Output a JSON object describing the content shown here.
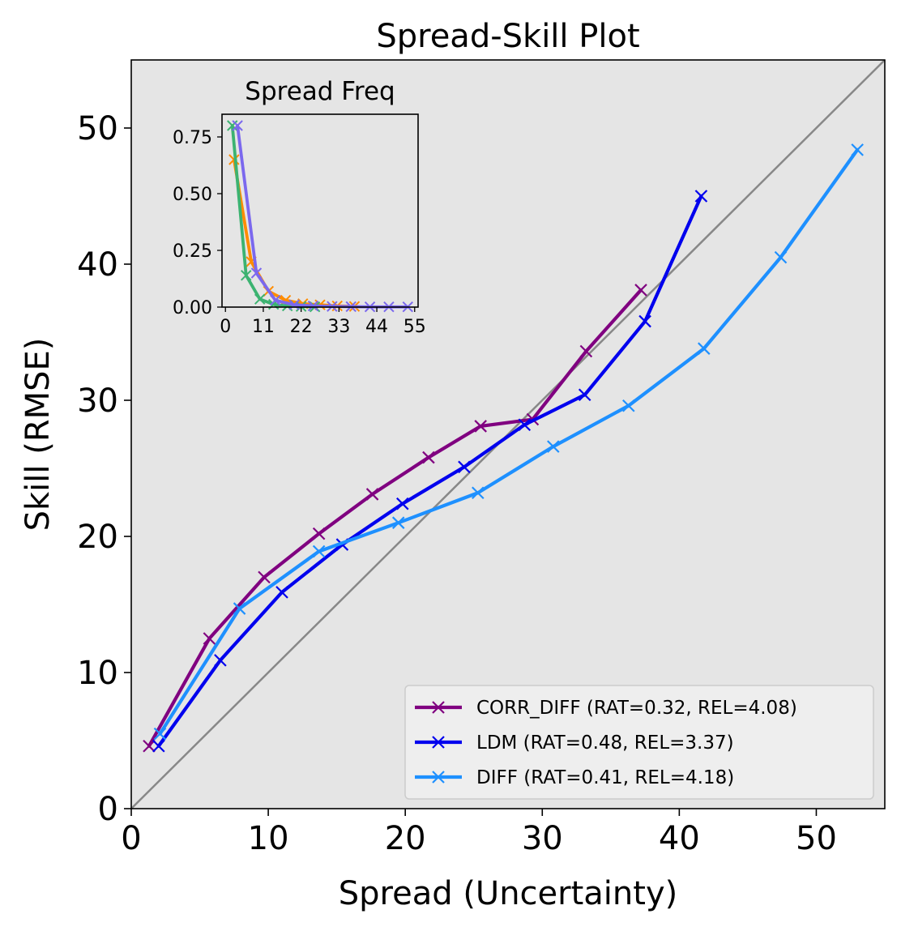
{
  "chart_data": [
    {
      "type": "line",
      "title": "Spread-Skill Plot",
      "xlabel": "Spread (Uncertainty)",
      "ylabel": "Skill (RMSE)",
      "xlim": [
        0,
        55
      ],
      "ylim": [
        0,
        55
      ],
      "x_ticks": [
        0,
        10,
        20,
        30,
        40,
        50
      ],
      "y_ticks": [
        0,
        10,
        20,
        30,
        40,
        50
      ],
      "x_tick_labels": [
        "0",
        "10",
        "20",
        "30",
        "40",
        "50"
      ],
      "y_tick_labels": [
        "0",
        "10",
        "20",
        "30",
        "40",
        "50"
      ],
      "grid": false,
      "background": "#e5e5e5",
      "reference_line": {
        "from": [
          0,
          0
        ],
        "to": [
          55,
          55
        ],
        "color": "#888888"
      },
      "legend_position": "lower-right",
      "series": [
        {
          "name": "CORR_DIFF (RAT=0.32, REL=4.08)",
          "color": "#800080",
          "marker": "x",
          "x": [
            1.3,
            5.7,
            9.7,
            13.7,
            17.6,
            21.7,
            25.5,
            29.3,
            33.2,
            37.2
          ],
          "y": [
            4.6,
            12.5,
            17.0,
            20.2,
            23.1,
            25.8,
            28.1,
            28.6,
            33.6,
            38.1
          ]
        },
        {
          "name": "LDM (RAT=0.48, REL=3.37)",
          "color": "#0000ee",
          "marker": "x",
          "x": [
            2.0,
            6.5,
            11.0,
            15.4,
            19.8,
            24.3,
            28.7,
            33.1,
            37.5,
            41.6
          ],
          "y": [
            4.6,
            10.9,
            15.9,
            19.4,
            22.4,
            25.1,
            28.2,
            30.4,
            35.8,
            45.0
          ]
        },
        {
          "name": "DIFF (RAT=0.41, REL=4.18)",
          "color": "#1e90ff",
          "marker": "x",
          "x": [
            2.1,
            7.9,
            13.7,
            19.5,
            25.3,
            30.8,
            36.3,
            41.8,
            47.4,
            53.0
          ],
          "y": [
            5.5,
            14.7,
            18.9,
            21.0,
            23.2,
            26.6,
            29.6,
            33.8,
            40.5,
            48.4
          ]
        }
      ]
    },
    {
      "type": "line",
      "title": "Spread Freq",
      "xlim": [
        -1,
        56
      ],
      "ylim": [
        0,
        0.85
      ],
      "x_ticks": [
        0,
        11,
        22,
        33,
        44,
        55
      ],
      "y_ticks": [
        0,
        0.25,
        0.5,
        0.75
      ],
      "x_tick_labels": [
        "0",
        "11",
        "22",
        "33",
        "44",
        "55"
      ],
      "y_tick_labels": [
        "0.00",
        "0.25",
        "0.50",
        "0.75"
      ],
      "background": "#e5e5e5",
      "series": [
        {
          "color": "#ff8c00",
          "marker": "x",
          "x": [
            2.5,
            7.5,
            12.5,
            17.5,
            22.5,
            27.5,
            32.5,
            37.5
          ],
          "y": [
            0.65,
            0.2,
            0.07,
            0.03,
            0.015,
            0.01,
            0.005,
            0.003
          ]
        },
        {
          "color": "#3cb371",
          "marker": "x",
          "x": [
            2.0,
            6.0,
            10.0,
            14.0,
            18.0,
            22.0,
            26.0
          ],
          "y": [
            0.8,
            0.14,
            0.035,
            0.012,
            0.005,
            0.003,
            0.001
          ]
        },
        {
          "color": "#7b68ee",
          "marker": "x",
          "x": [
            3.5,
            9.0,
            14.5,
            20.0,
            25.5,
            31.0,
            36.5,
            42.0,
            47.5,
            53.0
          ],
          "y": [
            0.8,
            0.15,
            0.03,
            0.01,
            0.005,
            0.003,
            0.002,
            0.001,
            0.001,
            0.001
          ]
        }
      ]
    }
  ]
}
